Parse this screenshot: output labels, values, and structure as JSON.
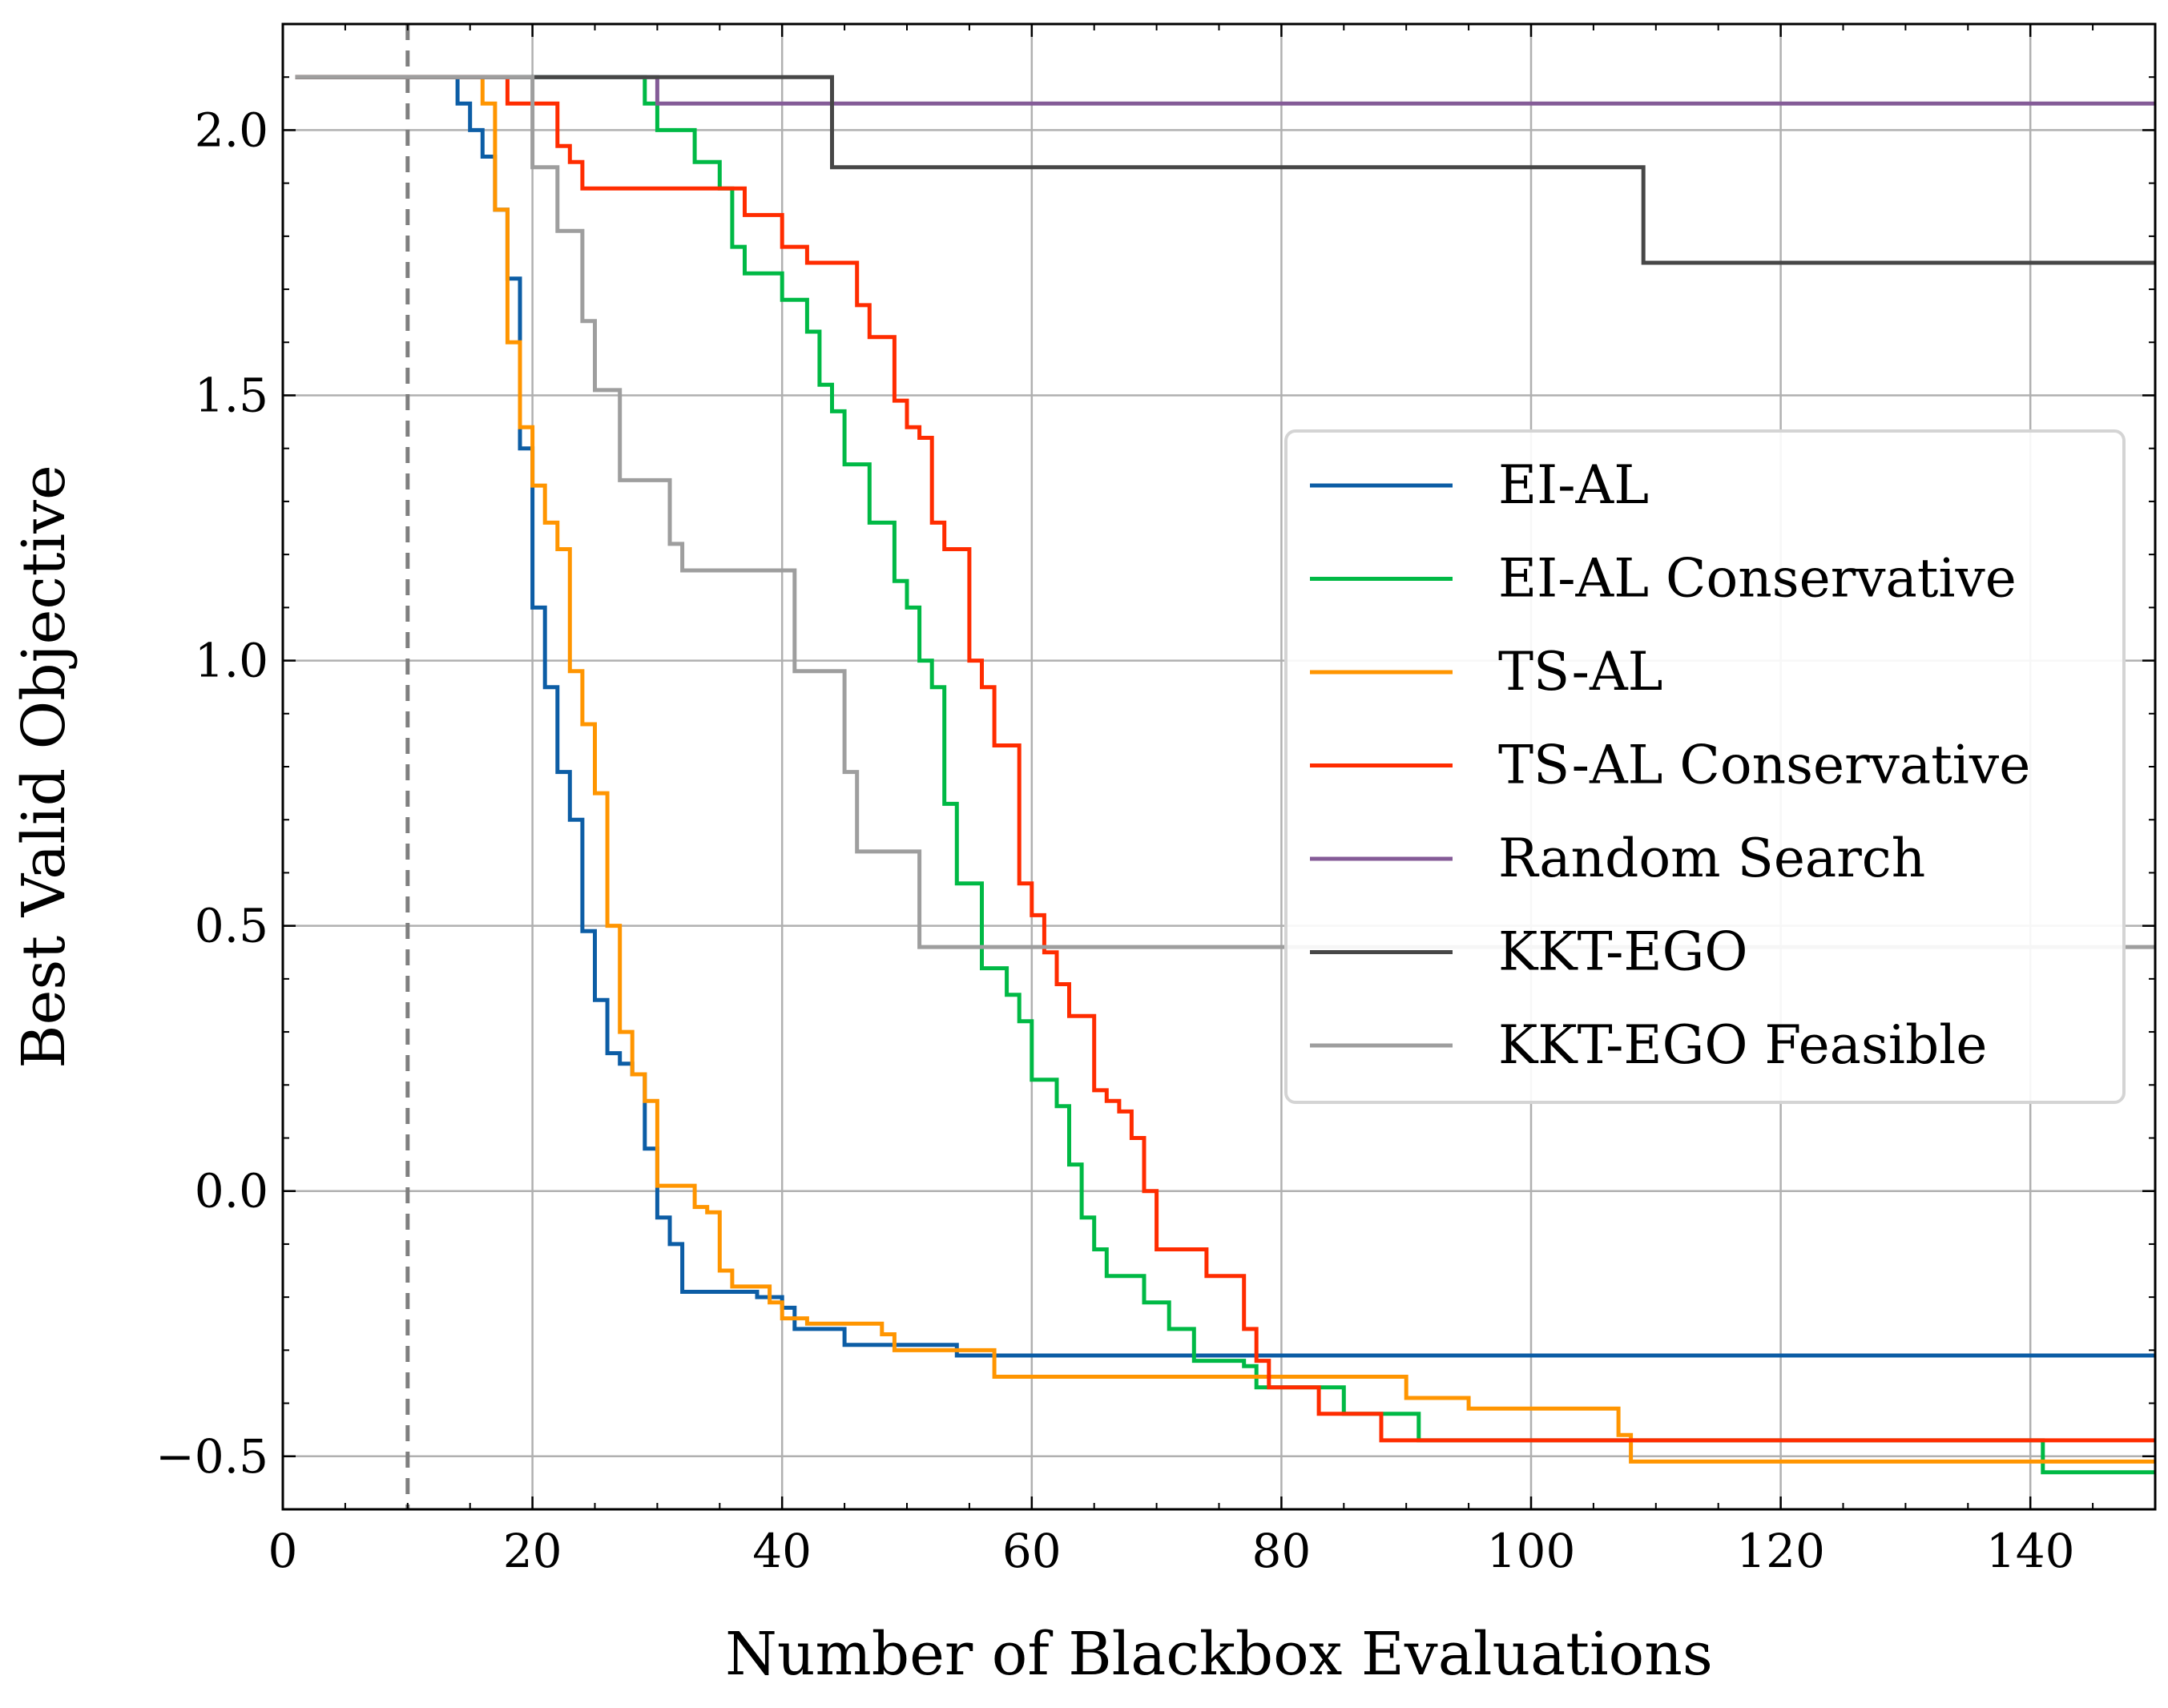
{
  "chart_data": {
    "type": "line",
    "title": "",
    "xlabel": "Number of Blackbox Evaluations",
    "ylabel": "Best Valid Objective",
    "xlim": [
      0,
      150
    ],
    "ylim": [
      -0.6,
      2.2
    ],
    "xticks": [
      0,
      20,
      40,
      60,
      80,
      100,
      120,
      140
    ],
    "yticks": [
      -0.5,
      0.0,
      0.5,
      1.0,
      1.5,
      2.0
    ],
    "xtick_labels": [
      "0",
      "20",
      "40",
      "60",
      "80",
      "100",
      "120",
      "140"
    ],
    "ytick_labels": [
      "−0.5",
      "0.0",
      "0.5",
      "1.0",
      "1.5",
      "2.0"
    ],
    "grid": true,
    "legend_position": "center-right",
    "vertical_marker": {
      "x": 10,
      "style": "dashed",
      "color": "#7f7f7f"
    },
    "series": [
      {
        "name": "EI-AL",
        "color": "#0c5da5",
        "drawstyle": "steps",
        "points": [
          [
            1,
            2.1
          ],
          [
            13,
            2.1
          ],
          [
            14,
            2.05
          ],
          [
            15,
            2.0
          ],
          [
            16,
            1.95
          ],
          [
            17,
            1.85
          ],
          [
            18,
            1.72
          ],
          [
            19,
            1.4
          ],
          [
            20,
            1.1
          ],
          [
            21,
            0.95
          ],
          [
            22,
            0.79
          ],
          [
            23,
            0.7
          ],
          [
            24,
            0.49
          ],
          [
            25,
            0.36
          ],
          [
            26,
            0.26
          ],
          [
            27,
            0.24
          ],
          [
            28,
            0.22
          ],
          [
            29,
            0.08
          ],
          [
            30,
            -0.05
          ],
          [
            31,
            -0.1
          ],
          [
            32,
            -0.19
          ],
          [
            33,
            -0.19
          ],
          [
            37,
            -0.19
          ],
          [
            38,
            -0.2
          ],
          [
            39,
            -0.2
          ],
          [
            40,
            -0.22
          ],
          [
            41,
            -0.26
          ],
          [
            43,
            -0.26
          ],
          [
            44,
            -0.26
          ],
          [
            45,
            -0.29
          ],
          [
            50,
            -0.29
          ],
          [
            54,
            -0.31
          ],
          [
            150,
            -0.31
          ]
        ]
      },
      {
        "name": "EI-AL Conservative",
        "color": "#00b945",
        "drawstyle": "steps",
        "points": [
          [
            1,
            2.1
          ],
          [
            28,
            2.1
          ],
          [
            29,
            2.05
          ],
          [
            30,
            2.0
          ],
          [
            32,
            2.0
          ],
          [
            33,
            1.94
          ],
          [
            34,
            1.94
          ],
          [
            35,
            1.89
          ],
          [
            36,
            1.78
          ],
          [
            37,
            1.73
          ],
          [
            39,
            1.73
          ],
          [
            40,
            1.68
          ],
          [
            41,
            1.68
          ],
          [
            42,
            1.62
          ],
          [
            43,
            1.52
          ],
          [
            44,
            1.47
          ],
          [
            45,
            1.37
          ],
          [
            46,
            1.37
          ],
          [
            47,
            1.26
          ],
          [
            48,
            1.26
          ],
          [
            49,
            1.15
          ],
          [
            50,
            1.1
          ],
          [
            51,
            1.0
          ],
          [
            52,
            0.95
          ],
          [
            53,
            0.73
          ],
          [
            54,
            0.58
          ],
          [
            55,
            0.58
          ],
          [
            56,
            0.42
          ],
          [
            57,
            0.42
          ],
          [
            58,
            0.37
          ],
          [
            59,
            0.32
          ],
          [
            60,
            0.21
          ],
          [
            61,
            0.21
          ],
          [
            62,
            0.16
          ],
          [
            63,
            0.05
          ],
          [
            64,
            -0.05
          ],
          [
            65,
            -0.11
          ],
          [
            66,
            -0.16
          ],
          [
            68,
            -0.16
          ],
          [
            69,
            -0.21
          ],
          [
            70,
            -0.21
          ],
          [
            71,
            -0.26
          ],
          [
            72,
            -0.26
          ],
          [
            73,
            -0.32
          ],
          [
            76,
            -0.32
          ],
          [
            77,
            -0.33
          ],
          [
            78,
            -0.37
          ],
          [
            84,
            -0.37
          ],
          [
            85,
            -0.42
          ],
          [
            90,
            -0.42
          ],
          [
            91,
            -0.47
          ],
          [
            140,
            -0.47
          ],
          [
            141,
            -0.53
          ],
          [
            150,
            -0.53
          ]
        ]
      },
      {
        "name": "TS-AL",
        "color": "#ff9500",
        "drawstyle": "steps",
        "points": [
          [
            1,
            2.1
          ],
          [
            15,
            2.1
          ],
          [
            16,
            2.05
          ],
          [
            17,
            1.85
          ],
          [
            18,
            1.6
          ],
          [
            19,
            1.44
          ],
          [
            20,
            1.33
          ],
          [
            21,
            1.26
          ],
          [
            22,
            1.21
          ],
          [
            23,
            0.98
          ],
          [
            24,
            0.88
          ],
          [
            25,
            0.75
          ],
          [
            26,
            0.5
          ],
          [
            27,
            0.3
          ],
          [
            28,
            0.22
          ],
          [
            29,
            0.17
          ],
          [
            30,
            0.01
          ],
          [
            32,
            0.01
          ],
          [
            33,
            -0.03
          ],
          [
            34,
            -0.04
          ],
          [
            35,
            -0.15
          ],
          [
            36,
            -0.18
          ],
          [
            38,
            -0.18
          ],
          [
            39,
            -0.21
          ],
          [
            40,
            -0.24
          ],
          [
            41,
            -0.24
          ],
          [
            42,
            -0.25
          ],
          [
            47,
            -0.25
          ],
          [
            48,
            -0.27
          ],
          [
            49,
            -0.3
          ],
          [
            55,
            -0.3
          ],
          [
            56,
            -0.3
          ],
          [
            57,
            -0.35
          ],
          [
            89,
            -0.35
          ],
          [
            90,
            -0.39
          ],
          [
            94,
            -0.39
          ],
          [
            95,
            -0.41
          ],
          [
            106,
            -0.41
          ],
          [
            107,
            -0.46
          ],
          [
            108,
            -0.51
          ],
          [
            150,
            -0.51
          ]
        ]
      },
      {
        "name": "TS-AL Conservative",
        "color": "#ff2c00",
        "drawstyle": "steps",
        "points": [
          [
            1,
            2.1
          ],
          [
            17,
            2.1
          ],
          [
            18,
            2.05
          ],
          [
            21,
            2.05
          ],
          [
            22,
            1.97
          ],
          [
            23,
            1.94
          ],
          [
            24,
            1.89
          ],
          [
            36,
            1.89
          ],
          [
            37,
            1.84
          ],
          [
            39,
            1.84
          ],
          [
            40,
            1.78
          ],
          [
            41,
            1.78
          ],
          [
            42,
            1.75
          ],
          [
            45,
            1.75
          ],
          [
            46,
            1.67
          ],
          [
            47,
            1.61
          ],
          [
            48,
            1.61
          ],
          [
            49,
            1.49
          ],
          [
            50,
            1.44
          ],
          [
            51,
            1.42
          ],
          [
            52,
            1.26
          ],
          [
            53,
            1.21
          ],
          [
            54,
            1.21
          ],
          [
            55,
            1.0
          ],
          [
            56,
            0.95
          ],
          [
            57,
            0.84
          ],
          [
            58,
            0.84
          ],
          [
            59,
            0.58
          ],
          [
            60,
            0.52
          ],
          [
            61,
            0.45
          ],
          [
            62,
            0.39
          ],
          [
            63,
            0.33
          ],
          [
            64,
            0.33
          ],
          [
            65,
            0.19
          ],
          [
            66,
            0.17
          ],
          [
            67,
            0.15
          ],
          [
            68,
            0.1
          ],
          [
            69,
            0.0
          ],
          [
            70,
            -0.11
          ],
          [
            72,
            -0.11
          ],
          [
            73,
            -0.11
          ],
          [
            74,
            -0.16
          ],
          [
            76,
            -0.16
          ],
          [
            77,
            -0.26
          ],
          [
            78,
            -0.32
          ],
          [
            79,
            -0.37
          ],
          [
            81,
            -0.37
          ],
          [
            82,
            -0.37
          ],
          [
            83,
            -0.42
          ],
          [
            87,
            -0.42
          ],
          [
            88,
            -0.47
          ],
          [
            150,
            -0.47
          ]
        ]
      },
      {
        "name": "Random Search",
        "color": "#845b97",
        "drawstyle": "steps",
        "points": [
          [
            1,
            2.1
          ],
          [
            29,
            2.1
          ],
          [
            30,
            2.05
          ],
          [
            150,
            2.05
          ]
        ]
      },
      {
        "name": "KKT-EGO",
        "color": "#474747",
        "drawstyle": "steps",
        "points": [
          [
            1,
            2.1
          ],
          [
            43,
            2.1
          ],
          [
            44,
            1.93
          ],
          [
            108,
            1.93
          ],
          [
            109,
            1.75
          ],
          [
            150,
            1.75
          ]
        ]
      },
      {
        "name": "KKT-EGO Feasible",
        "color": "#9e9e9e",
        "drawstyle": "steps",
        "points": [
          [
            1,
            2.1
          ],
          [
            19,
            2.1
          ],
          [
            20,
            1.93
          ],
          [
            21,
            1.93
          ],
          [
            22,
            1.81
          ],
          [
            23,
            1.81
          ],
          [
            24,
            1.64
          ],
          [
            25,
            1.51
          ],
          [
            26,
            1.51
          ],
          [
            27,
            1.34
          ],
          [
            30,
            1.34
          ],
          [
            31,
            1.22
          ],
          [
            32,
            1.17
          ],
          [
            40,
            1.17
          ],
          [
            41,
            0.98
          ],
          [
            44,
            0.98
          ],
          [
            45,
            0.79
          ],
          [
            46,
            0.64
          ],
          [
            50,
            0.64
          ],
          [
            51,
            0.46
          ],
          [
            150,
            0.46
          ]
        ]
      }
    ]
  }
}
